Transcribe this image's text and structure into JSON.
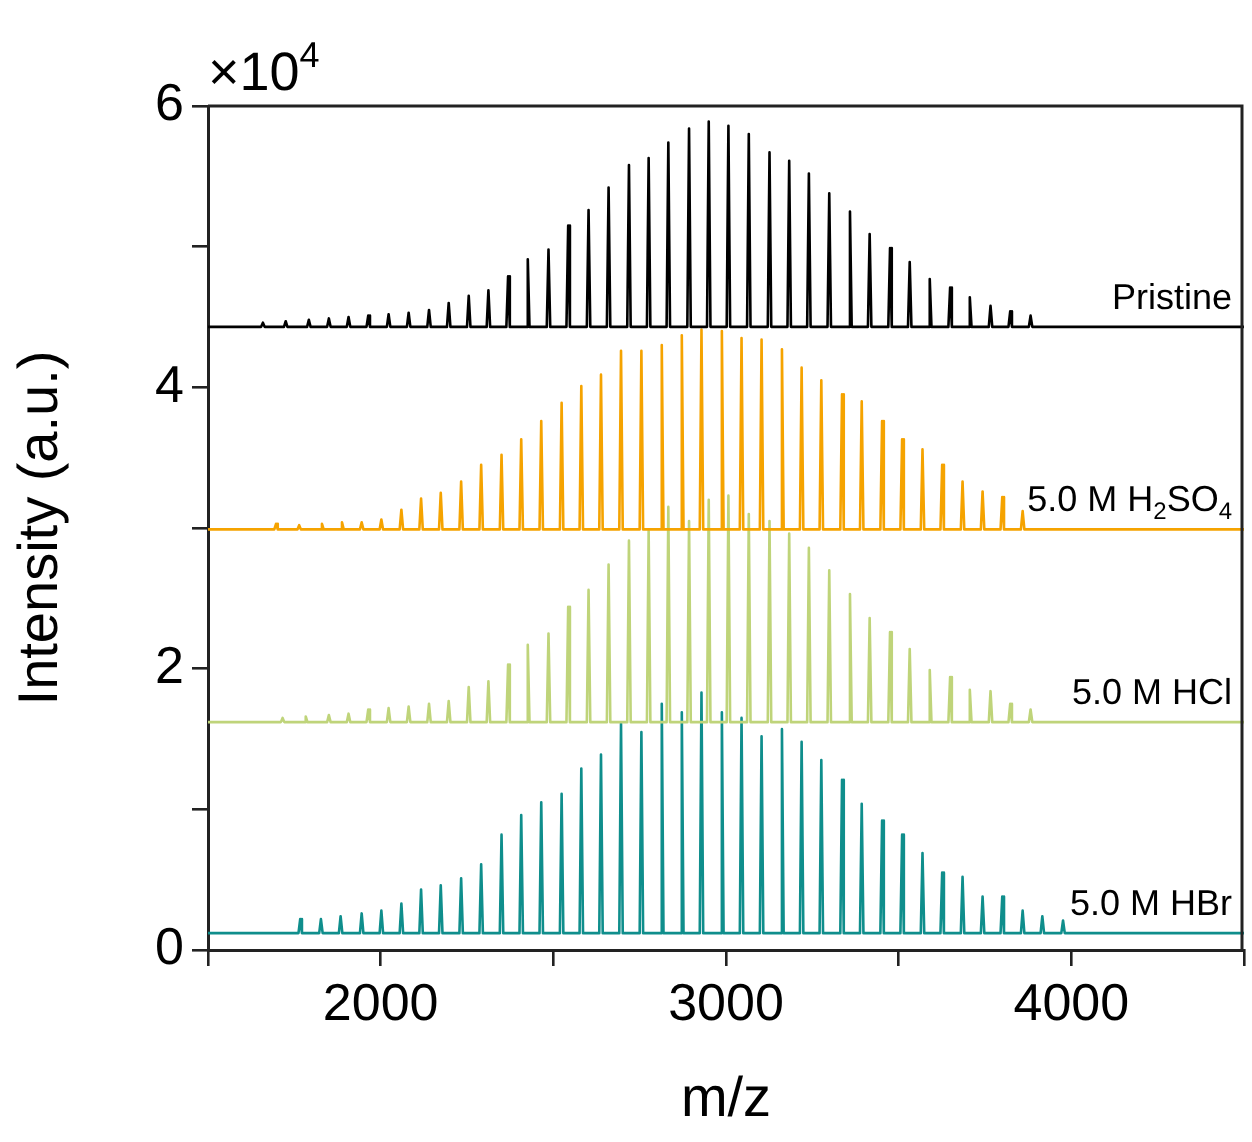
{
  "chart_data": {
    "type": "line",
    "xlabel": "m/z",
    "ylabel": "Intensity (a.u.)",
    "annotations": [
      "×10$^{4}$"
    ],
    "xlim": [
      1500,
      4500
    ],
    "xticks": [
      {
        "value": 1500,
        "label": null
      },
      2000,
      {
        "value": 2500,
        "label": null
      },
      3000,
      {
        "value": 3500,
        "label": null
      },
      4000,
      {
        "value": 4500,
        "label": null
      }
    ],
    "ylim": [
      0,
      6
    ],
    "yticks": [
      0,
      {
        "value": 1,
        "label": null
      },
      2,
      {
        "value": 3,
        "label": null
      },
      4,
      {
        "value": 5,
        "label": null
      },
      6
    ],
    "series": [
      {
        "name": "Pristine",
        "color": "#000000",
        "x": [
          1500,
          1654,
          1659,
          1664,
          1720,
          1725,
          1730,
          1787,
          1792,
          1797,
          1845,
          1850,
          1855,
          1902,
          1907,
          1912,
          1959,
          1964,
          1969,
          2018,
          2023,
          2028,
          2076,
          2081,
          2086,
          2135,
          2140,
          2145,
          2192,
          2197,
          2202,
          2250,
          2255,
          2260,
          2307,
          2312,
          2317,
          2364,
          2369,
          2374,
          2421,
          2426,
          2431,
          2481,
          2486,
          2491,
          2538,
          2543,
          2548,
          2597,
          2602,
          2607,
          2655,
          2660,
          2665,
          2714,
          2719,
          2724,
          2771,
          2776,
          2781,
          2828,
          2833,
          2838,
          2888,
          2893,
          2898,
          2945,
          2950,
          2955,
          3002,
          3007,
          3012,
          3061,
          3066,
          3071,
          3121,
          3126,
          3131,
          3178,
          3183,
          3188,
          3235,
          3240,
          3245,
          3294,
          3299,
          3304,
          3354,
          3359,
          3364,
          3411,
          3416,
          3421,
          3470,
          3475,
          3480,
          3527,
          3532,
          3537,
          3585,
          3590,
          3595,
          3644,
          3649,
          3654,
          3701,
          3706,
          3711,
          3761,
          3766,
          3771,
          3818,
          3823,
          3828,
          3877,
          3882,
          3887,
          4500
        ],
        "values": [
          4.43,
          4.43,
          4.46,
          4.43,
          4.43,
          4.47,
          4.43,
          4.43,
          4.48,
          4.43,
          4.43,
          4.49,
          4.43,
          4.43,
          4.5,
          4.43,
          4.43,
          4.51,
          4.43,
          4.43,
          4.52,
          4.43,
          4.43,
          4.53,
          4.43,
          4.43,
          4.55,
          4.43,
          4.43,
          4.6,
          4.43,
          4.43,
          4.65,
          4.43,
          4.43,
          4.69,
          4.43,
          4.43,
          4.79,
          4.43,
          4.43,
          4.91,
          4.43,
          4.43,
          4.98,
          4.43,
          4.43,
          5.15,
          4.43,
          4.43,
          5.26,
          4.43,
          4.43,
          5.42,
          4.43,
          4.43,
          5.58,
          4.43,
          4.43,
          5.63,
          4.43,
          4.43,
          5.74,
          4.43,
          4.43,
          5.84,
          4.43,
          4.43,
          5.89,
          4.43,
          4.43,
          5.86,
          4.43,
          4.43,
          5.8,
          4.43,
          4.43,
          5.67,
          4.43,
          4.43,
          5.61,
          4.43,
          4.43,
          5.52,
          4.43,
          4.43,
          5.38,
          4.43,
          4.43,
          5.25,
          4.43,
          4.43,
          5.09,
          4.43,
          4.43,
          4.99,
          4.43,
          4.43,
          4.89,
          4.43,
          4.43,
          4.77,
          4.43,
          4.43,
          4.71,
          4.43,
          4.43,
          4.64,
          4.43,
          4.43,
          4.58,
          4.43,
          4.43,
          4.54,
          4.43,
          4.43,
          4.51,
          4.43,
          4.43
        ]
      },
      {
        "name": "5.0 M H$_{2}$SO$_{4}$",
        "color": "#f5a300",
        "x": [
          1500,
          1692,
          1697,
          1702,
          1759,
          1764,
          1769,
          1825,
          1830,
          1835,
          1883,
          1888,
          1893,
          1940,
          1945,
          1950,
          1997,
          2002,
          2007,
          2055,
          2060,
          2065,
          2112,
          2117,
          2122,
          2169,
          2174,
          2179,
          2228,
          2233,
          2238,
          2286,
          2291,
          2296,
          2345,
          2350,
          2355,
          2402,
          2407,
          2412,
          2460,
          2465,
          2470,
          2519,
          2524,
          2529,
          2576,
          2581,
          2586,
          2633,
          2638,
          2643,
          2691,
          2696,
          2701,
          2750,
          2755,
          2760,
          2809,
          2814,
          2819,
          2867,
          2872,
          2877,
          2924,
          2929,
          2934,
          2983,
          2988,
          2993,
          3040,
          3045,
          3050,
          3098,
          3103,
          3108,
          3157,
          3162,
          3167,
          3214,
          3219,
          3224,
          3271,
          3276,
          3281,
          3331,
          3336,
          3341,
          3388,
          3393,
          3398,
          3447,
          3452,
          3457,
          3505,
          3510,
          3515,
          3564,
          3569,
          3574,
          3621,
          3626,
          3631,
          3680,
          3685,
          3690,
          3738,
          3743,
          3748,
          3795,
          3800,
          3805,
          3854,
          3859,
          3864,
          4500
        ],
        "values": [
          2.99,
          2.99,
          3.03,
          2.99,
          2.99,
          3.02,
          2.99,
          2.99,
          3.03,
          2.99,
          2.99,
          3.04,
          2.99,
          2.99,
          3.04,
          2.99,
          2.99,
          3.06,
          2.99,
          2.99,
          3.13,
          2.99,
          2.99,
          3.21,
          2.99,
          2.99,
          3.25,
          2.99,
          2.99,
          3.33,
          2.99,
          2.99,
          3.45,
          2.99,
          2.99,
          3.52,
          2.99,
          2.99,
          3.63,
          2.99,
          2.99,
          3.76,
          2.99,
          2.99,
          3.89,
          2.99,
          2.99,
          4.01,
          2.99,
          2.99,
          4.09,
          2.99,
          2.99,
          4.26,
          2.99,
          2.99,
          4.26,
          2.99,
          2.99,
          4.3,
          2.99,
          2.99,
          4.37,
          2.99,
          2.99,
          4.41,
          2.99,
          2.99,
          4.4,
          2.99,
          2.99,
          4.35,
          2.99,
          2.99,
          4.34,
          2.99,
          2.99,
          4.27,
          2.99,
          2.99,
          4.14,
          2.99,
          2.99,
          4.05,
          2.99,
          2.99,
          3.95,
          2.99,
          2.99,
          3.9,
          2.99,
          2.99,
          3.76,
          2.99,
          2.99,
          3.63,
          2.99,
          2.99,
          3.56,
          2.99,
          2.99,
          3.45,
          2.99,
          2.99,
          3.33,
          2.99,
          2.99,
          3.26,
          2.99,
          2.99,
          3.22,
          2.99,
          2.99,
          3.12,
          2.99,
          2.99
        ]
      },
      {
        "name": "5.0 M HCl",
        "color": "#bfd47a",
        "x": [
          1500,
          1711,
          1716,
          1721,
          1778,
          1783,
          1788,
          1845,
          1850,
          1855,
          1902,
          1907,
          1912,
          1959,
          1964,
          1969,
          2018,
          2023,
          2028,
          2076,
          2081,
          2086,
          2135,
          2140,
          2145,
          2192,
          2197,
          2202,
          2250,
          2255,
          2260,
          2307,
          2312,
          2317,
          2364,
          2369,
          2374,
          2421,
          2426,
          2431,
          2481,
          2486,
          2491,
          2538,
          2543,
          2548,
          2597,
          2602,
          2607,
          2655,
          2660,
          2665,
          2714,
          2719,
          2724,
          2771,
          2776,
          2781,
          2828,
          2833,
          2838,
          2888,
          2893,
          2898,
          2945,
          2950,
          2955,
          3002,
          3007,
          3012,
          3061,
          3066,
          3071,
          3121,
          3126,
          3131,
          3178,
          3183,
          3188,
          3235,
          3240,
          3245,
          3294,
          3299,
          3304,
          3354,
          3359,
          3364,
          3411,
          3416,
          3421,
          3470,
          3475,
          3480,
          3527,
          3532,
          3537,
          3585,
          3590,
          3595,
          3644,
          3649,
          3654,
          3701,
          3706,
          3711,
          3761,
          3766,
          3771,
          3818,
          3823,
          3828,
          3877,
          3882,
          3887,
          4500
        ],
        "values": [
          1.62,
          1.62,
          1.65,
          1.62,
          1.62,
          1.66,
          1.62,
          1.62,
          1.67,
          1.62,
          1.62,
          1.68,
          1.62,
          1.62,
          1.71,
          1.62,
          1.62,
          1.72,
          1.62,
          1.62,
          1.73,
          1.62,
          1.62,
          1.75,
          1.62,
          1.62,
          1.77,
          1.62,
          1.62,
          1.87,
          1.62,
          1.62,
          1.91,
          1.62,
          1.62,
          2.03,
          1.62,
          1.62,
          2.17,
          1.62,
          1.62,
          2.25,
          1.62,
          1.62,
          2.44,
          1.62,
          1.62,
          2.56,
          1.62,
          1.62,
          2.74,
          1.62,
          1.62,
          2.91,
          1.62,
          1.62,
          2.98,
          1.62,
          1.62,
          3.15,
          1.62,
          1.62,
          3.05,
          1.62,
          1.62,
          3.2,
          1.62,
          1.62,
          3.23,
          1.62,
          1.62,
          3.1,
          1.62,
          1.62,
          3.05,
          1.62,
          1.62,
          2.96,
          1.62,
          1.62,
          2.86,
          1.62,
          1.62,
          2.7,
          1.62,
          1.62,
          2.53,
          1.62,
          1.62,
          2.36,
          1.62,
          1.62,
          2.26,
          1.62,
          1.62,
          2.14,
          1.62,
          1.62,
          1.99,
          1.62,
          1.62,
          1.94,
          1.62,
          1.62,
          1.85,
          1.62,
          1.62,
          1.84,
          1.62,
          1.62,
          1.75,
          1.62,
          1.62,
          1.71,
          1.62,
          1.62
        ]
      },
      {
        "name": "5.0 M HBr",
        "color": "#0f8e8c",
        "x": [
          1500,
          1762,
          1767,
          1772,
          1822,
          1827,
          1832,
          1879,
          1884,
          1889,
          1940,
          1945,
          1950,
          1997,
          2002,
          2007,
          2055,
          2060,
          2065,
          2112,
          2117,
          2122,
          2169,
          2174,
          2179,
          2228,
          2233,
          2238,
          2286,
          2291,
          2296,
          2345,
          2350,
          2355,
          2402,
          2407,
          2412,
          2460,
          2465,
          2470,
          2519,
          2524,
          2529,
          2576,
          2581,
          2586,
          2633,
          2638,
          2643,
          2691,
          2696,
          2701,
          2750,
          2755,
          2760,
          2809,
          2814,
          2819,
          2867,
          2872,
          2877,
          2924,
          2929,
          2934,
          2983,
          2988,
          2993,
          3040,
          3045,
          3050,
          3098,
          3103,
          3108,
          3157,
          3162,
          3167,
          3214,
          3219,
          3224,
          3271,
          3276,
          3281,
          3331,
          3336,
          3341,
          3388,
          3393,
          3398,
          3447,
          3452,
          3457,
          3505,
          3510,
          3515,
          3564,
          3569,
          3574,
          3621,
          3626,
          3631,
          3680,
          3685,
          3690,
          3738,
          3743,
          3748,
          3795,
          3800,
          3805,
          3854,
          3859,
          3864,
          3911,
          3916,
          3921,
          3971,
          3976,
          3981,
          4500
        ],
        "values": [
          0.12,
          0.12,
          0.22,
          0.12,
          0.12,
          0.22,
          0.12,
          0.12,
          0.24,
          0.12,
          0.12,
          0.26,
          0.12,
          0.12,
          0.28,
          0.12,
          0.12,
          0.33,
          0.12,
          0.12,
          0.43,
          0.12,
          0.12,
          0.46,
          0.12,
          0.12,
          0.51,
          0.12,
          0.12,
          0.61,
          0.12,
          0.12,
          0.82,
          0.12,
          0.12,
          0.96,
          0.12,
          0.12,
          1.05,
          0.12,
          0.12,
          1.11,
          0.12,
          0.12,
          1.29,
          0.12,
          0.12,
          1.39,
          0.12,
          0.12,
          1.61,
          0.12,
          0.12,
          1.55,
          0.12,
          0.12,
          1.75,
          0.12,
          0.12,
          1.69,
          0.12,
          0.12,
          1.83,
          0.12,
          0.12,
          1.69,
          0.12,
          0.12,
          1.65,
          0.12,
          0.12,
          1.52,
          0.12,
          0.12,
          1.57,
          0.12,
          0.12,
          1.48,
          0.12,
          0.12,
          1.35,
          0.12,
          0.12,
          1.21,
          0.12,
          0.12,
          1.04,
          0.12,
          0.12,
          0.92,
          0.12,
          0.12,
          0.82,
          0.12,
          0.12,
          0.69,
          0.12,
          0.12,
          0.55,
          0.12,
          0.12,
          0.52,
          0.12,
          0.12,
          0.38,
          0.12,
          0.12,
          0.38,
          0.12,
          0.12,
          0.28,
          0.12,
          0.12,
          0.24,
          0.12,
          0.12,
          0.21,
          0.12,
          0.12
        ]
      }
    ]
  }
}
